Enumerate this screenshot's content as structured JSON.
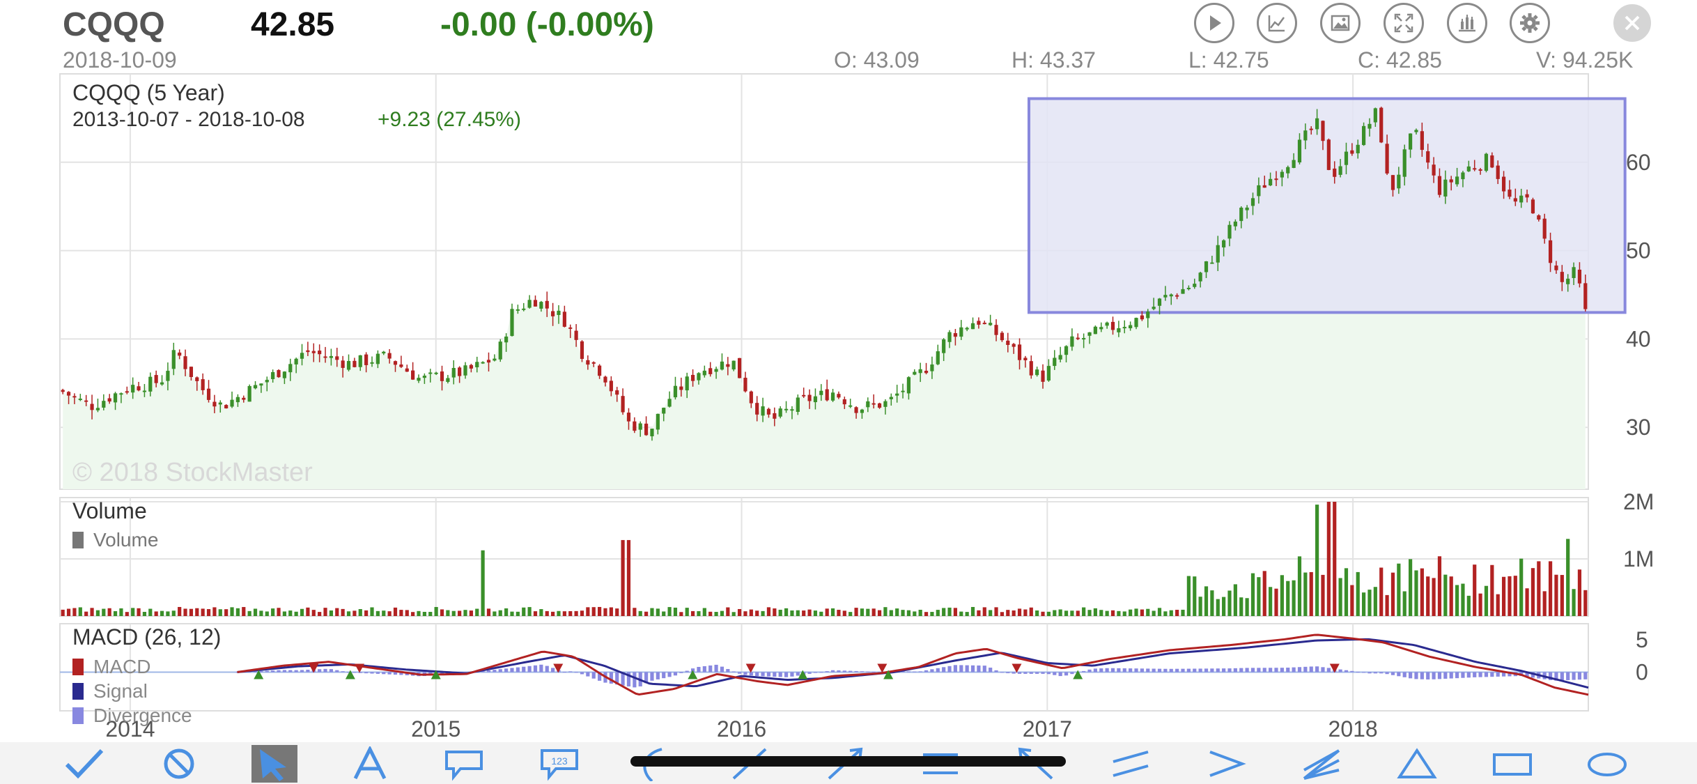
{
  "header": {
    "symbol": "CQQQ",
    "price": "42.85",
    "change": "-0.00 (-0.00%)",
    "date": "2018-10-09",
    "open": "O: 43.09",
    "high": "H: 43.37",
    "low": "L: 42.75",
    "close": "C: 42.85",
    "volume": "V: 94.25K"
  },
  "toolbar": {
    "icons": [
      "play-icon",
      "line-chart-icon",
      "image-icon",
      "expand-icon",
      "candlestick-icon",
      "gear-icon",
      "close-icon"
    ]
  },
  "colors": {
    "up": "#3a8f2a",
    "down": "#b22222",
    "macd_line": "#b22222",
    "signal_line": "#2a2a8f",
    "divergence": "#8888e0",
    "area_fill": "#eef8ee",
    "selection_fill": "#e3e4f5",
    "selection_stroke": "#8888dd",
    "tool_blue": "#4a90e2"
  },
  "chart_data": [
    {
      "type": "candlestick",
      "title": "CQQQ (5 Year)",
      "subtitle_range": "2013-10-07 - 2018-10-08",
      "subtitle_change": "+9.23 (27.45%)",
      "watermark": "© 2018 StockMaster",
      "x_ticks": [
        {
          "date": 2014.0,
          "label": "2014"
        },
        {
          "date": 2015.0,
          "label": "2015"
        },
        {
          "date": 2016.0,
          "label": "2016"
        },
        {
          "date": 2017.0,
          "label": "2017"
        },
        {
          "date": 2018.0,
          "label": "2018"
        }
      ],
      "x_range": [
        2013.77,
        2018.77
      ],
      "y_ticks": [
        30,
        40,
        50,
        60
      ],
      "ylim": [
        23,
        70
      ],
      "series_key_points": [
        [
          2013.77,
          34.2
        ],
        [
          2013.87,
          32.4
        ],
        [
          2014.0,
          34.6
        ],
        [
          2014.1,
          35.2
        ],
        [
          2014.15,
          38.6
        ],
        [
          2014.23,
          34.5
        ],
        [
          2014.3,
          32.4
        ],
        [
          2014.42,
          34.8
        ],
        [
          2014.58,
          38.6
        ],
        [
          2014.72,
          37.2
        ],
        [
          2014.84,
          38.0
        ],
        [
          2014.95,
          35.4
        ],
        [
          2015.1,
          36.3
        ],
        [
          2015.2,
          38.0
        ],
        [
          2015.25,
          43.0
        ],
        [
          2015.32,
          44.6
        ],
        [
          2015.42,
          42.2
        ],
        [
          2015.48,
          38.4
        ],
        [
          2015.55,
          36.0
        ],
        [
          2015.63,
          30.5
        ],
        [
          2015.7,
          29.6
        ],
        [
          2015.76,
          33.2
        ],
        [
          2015.86,
          36.4
        ],
        [
          2015.97,
          37.6
        ],
        [
          2016.04,
          32.5
        ],
        [
          2016.1,
          30.8
        ],
        [
          2016.2,
          33.0
        ],
        [
          2016.3,
          34.0
        ],
        [
          2016.38,
          32.2
        ],
        [
          2016.48,
          32.8
        ],
        [
          2016.6,
          36.6
        ],
        [
          2016.68,
          40.5
        ],
        [
          2016.77,
          42.2
        ],
        [
          2016.84,
          40.4
        ],
        [
          2016.92,
          37.6
        ],
        [
          2016.98,
          35.5
        ],
        [
          2017.08,
          39.6
        ],
        [
          2017.2,
          41.2
        ],
        [
          2017.3,
          42.3
        ],
        [
          2017.38,
          44.6
        ],
        [
          2017.48,
          46.2
        ],
        [
          2017.55,
          49.8
        ],
        [
          2017.62,
          53.6
        ],
        [
          2017.7,
          57.2
        ],
        [
          2017.78,
          59.8
        ],
        [
          2017.88,
          64.5
        ],
        [
          2017.93,
          58.4
        ],
        [
          2018.03,
          63.2
        ],
        [
          2018.08,
          65.8
        ],
        [
          2018.12,
          56.2
        ],
        [
          2018.2,
          63.6
        ],
        [
          2018.28,
          56.8
        ],
        [
          2018.38,
          59.4
        ],
        [
          2018.45,
          60.4
        ],
        [
          2018.52,
          55.2
        ],
        [
          2018.58,
          55.8
        ],
        [
          2018.63,
          50.6
        ],
        [
          2018.68,
          46.2
        ],
        [
          2018.73,
          47.6
        ],
        [
          2018.76,
          42.9
        ]
      ],
      "selection_box": {
        "x_from": 2016.94,
        "x_to": 2018.89,
        "y_from": 43.0,
        "y_to": 67.2
      }
    },
    {
      "type": "bar",
      "title": "Volume",
      "legend": [
        "Volume"
      ],
      "y_ticks": [
        {
          "value": 1000000,
          "label": "1M"
        },
        {
          "value": 2000000,
          "label": "2M"
        }
      ],
      "ylim": [
        0,
        2000000
      ],
      "spikes": [
        {
          "x": 2015.15,
          "value": 1150000
        },
        {
          "x": 2015.62,
          "value": 1330000
        },
        {
          "x": 2017.88,
          "value": 1950000
        },
        {
          "x": 2017.93,
          "value": 2000000
        },
        {
          "x": 2018.7,
          "value": 1350000
        }
      ]
    },
    {
      "type": "line",
      "title": "MACD (26, 12)",
      "legend": [
        "MACD",
        "Signal",
        "Divergence"
      ],
      "y_ticks": [
        5,
        0
      ],
      "ylim": [
        -6,
        7.5
      ],
      "macd_key_points": [
        [
          2014.35,
          0.0
        ],
        [
          2014.5,
          1.0
        ],
        [
          2014.65,
          1.6
        ],
        [
          2014.8,
          0.6
        ],
        [
          2014.95,
          -0.4
        ],
        [
          2015.1,
          -0.3
        ],
        [
          2015.25,
          1.8
        ],
        [
          2015.35,
          3.2
        ],
        [
          2015.45,
          2.4
        ],
        [
          2015.55,
          -0.6
        ],
        [
          2015.66,
          -3.5
        ],
        [
          2015.78,
          -2.6
        ],
        [
          2015.92,
          -0.3
        ],
        [
          2016.05,
          -1.4
        ],
        [
          2016.15,
          -2.0
        ],
        [
          2016.3,
          -0.6
        ],
        [
          2016.45,
          -0.2
        ],
        [
          2016.58,
          0.8
        ],
        [
          2016.7,
          2.9
        ],
        [
          2016.8,
          3.6
        ],
        [
          2016.9,
          2.2
        ],
        [
          2017.05,
          0.6
        ],
        [
          2017.2,
          2.0
        ],
        [
          2017.4,
          3.4
        ],
        [
          2017.6,
          4.2
        ],
        [
          2017.78,
          5.1
        ],
        [
          2017.88,
          5.8
        ],
        [
          2018.0,
          5.2
        ],
        [
          2018.1,
          4.6
        ],
        [
          2018.25,
          2.4
        ],
        [
          2018.4,
          0.8
        ],
        [
          2018.55,
          -0.4
        ],
        [
          2018.66,
          -2.4
        ],
        [
          2018.77,
          -3.5
        ]
      ],
      "signal_key_points": [
        [
          2014.35,
          0.0
        ],
        [
          2014.55,
          0.9
        ],
        [
          2014.72,
          1.2
        ],
        [
          2014.9,
          0.4
        ],
        [
          2015.1,
          -0.2
        ],
        [
          2015.3,
          1.6
        ],
        [
          2015.42,
          2.6
        ],
        [
          2015.55,
          1.0
        ],
        [
          2015.7,
          -1.8
        ],
        [
          2015.85,
          -2.2
        ],
        [
          2016.0,
          -0.6
        ],
        [
          2016.15,
          -1.2
        ],
        [
          2016.3,
          -0.9
        ],
        [
          2016.5,
          0.0
        ],
        [
          2016.7,
          1.8
        ],
        [
          2016.85,
          3.0
        ],
        [
          2017.0,
          1.4
        ],
        [
          2017.15,
          1.0
        ],
        [
          2017.4,
          2.9
        ],
        [
          2017.65,
          3.8
        ],
        [
          2017.88,
          4.9
        ],
        [
          2018.05,
          5.1
        ],
        [
          2018.2,
          4.2
        ],
        [
          2018.4,
          1.6
        ],
        [
          2018.55,
          0.2
        ],
        [
          2018.68,
          -1.3
        ],
        [
          2018.77,
          -2.4
        ]
      ],
      "buy_markers": [
        2014.42,
        2014.72,
        2015.0,
        2015.84,
        2016.2,
        2016.48,
        2017.1
      ],
      "sell_markers": [
        2014.6,
        2014.75,
        2015.4,
        2016.03,
        2016.46,
        2016.9,
        2017.94
      ]
    }
  ],
  "drawing_tools": [
    {
      "name": "check-tool-icon",
      "selected": false
    },
    {
      "name": "cancel-tool-icon",
      "selected": false
    },
    {
      "name": "pointer-tool-icon",
      "selected": true
    },
    {
      "name": "text-tool-icon",
      "selected": false
    },
    {
      "name": "callout-tool-icon",
      "selected": false
    },
    {
      "name": "number-tool-icon",
      "selected": false
    },
    {
      "name": "curve-tool-icon",
      "selected": false
    },
    {
      "name": "line-tool-icon",
      "selected": false
    },
    {
      "name": "arrow-tool-icon",
      "selected": false
    },
    {
      "name": "horizontal-lines-tool-icon",
      "selected": false
    },
    {
      "name": "arrow-left-tool-icon",
      "selected": false
    },
    {
      "name": "parallel-lines-tool-icon",
      "selected": false
    },
    {
      "name": "chevron-tool-icon",
      "selected": false
    },
    {
      "name": "fan-lines-tool-icon",
      "selected": false
    },
    {
      "name": "triangle-tool-icon",
      "selected": false
    },
    {
      "name": "rectangle-tool-icon",
      "selected": false
    },
    {
      "name": "ellipse-tool-icon",
      "selected": false
    }
  ],
  "number_tool_label": "123"
}
